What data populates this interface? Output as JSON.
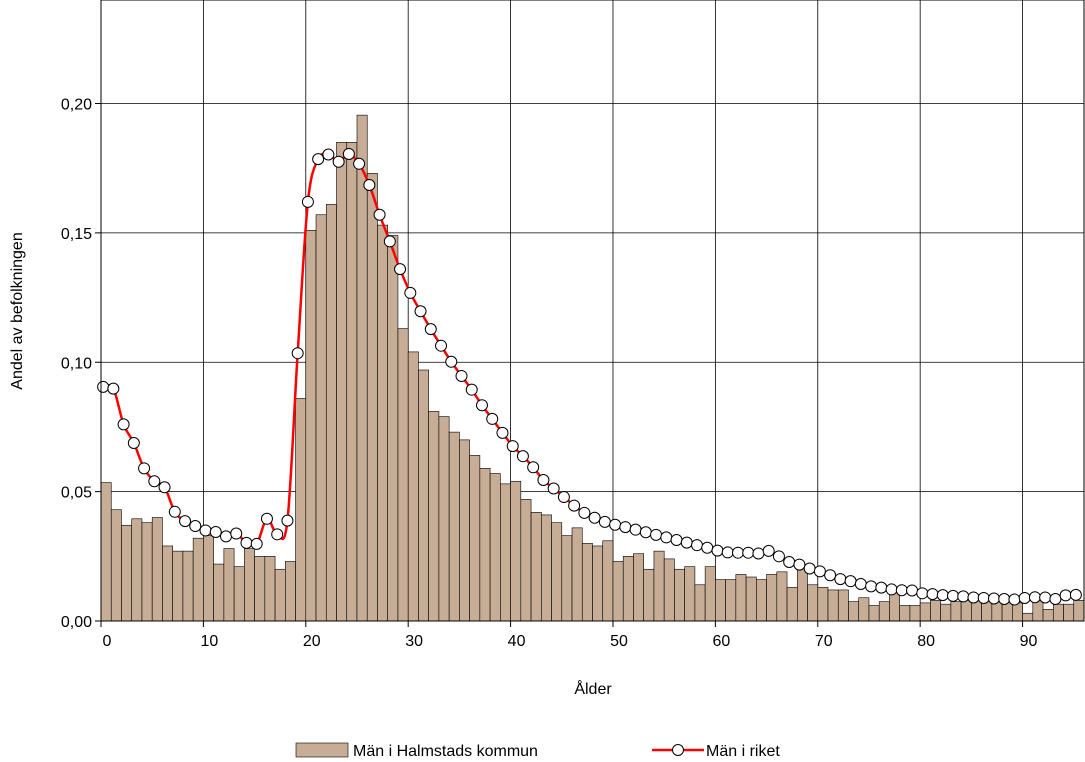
{
  "chart_data": {
    "type": "bar",
    "xlabel": "Ålder",
    "ylabel": "Andel av befolkningen",
    "xlim": [
      0,
      96
    ],
    "ylim": [
      0,
      0.24
    ],
    "x_ticks": [
      0,
      10,
      20,
      30,
      40,
      50,
      60,
      70,
      80,
      90
    ],
    "x_tick_labels": [
      "0",
      "10",
      "20",
      "30",
      "40",
      "50",
      "60",
      "70",
      "80",
      "90"
    ],
    "y_ticks": [
      0,
      0.05,
      0.1,
      0.15,
      0.2
    ],
    "y_tick_labels": [
      "0,00",
      "0,05",
      "0,10",
      "0,15",
      "0,20"
    ],
    "grid": true,
    "legend_position": "bottom",
    "ages": [
      0,
      1,
      2,
      3,
      4,
      5,
      6,
      7,
      8,
      9,
      10,
      11,
      12,
      13,
      14,
      15,
      16,
      17,
      18,
      19,
      20,
      21,
      22,
      23,
      24,
      25,
      26,
      27,
      28,
      29,
      30,
      31,
      32,
      33,
      34,
      35,
      36,
      37,
      38,
      39,
      40,
      41,
      42,
      43,
      44,
      45,
      46,
      47,
      48,
      49,
      50,
      51,
      52,
      53,
      54,
      55,
      56,
      57,
      58,
      59,
      60,
      61,
      62,
      63,
      64,
      65,
      66,
      67,
      68,
      69,
      70,
      71,
      72,
      73,
      74,
      75,
      76,
      77,
      78,
      79,
      80,
      81,
      82,
      83,
      84,
      85,
      86,
      87,
      88,
      89,
      90,
      91,
      92,
      93,
      94,
      95
    ],
    "series": [
      {
        "name": "Män i Halmstads kommun",
        "type": "bar",
        "color": "#c8ad96",
        "values": [
          0.0535,
          0.043,
          0.037,
          0.0395,
          0.038,
          0.04,
          0.029,
          0.027,
          0.027,
          0.032,
          0.033,
          0.022,
          0.028,
          0.021,
          0.028,
          0.025,
          0.025,
          0.02,
          0.023,
          0.086,
          0.151,
          0.157,
          0.161,
          0.185,
          0.185,
          0.1955,
          0.173,
          0.153,
          0.149,
          0.113,
          0.104,
          0.097,
          0.081,
          0.079,
          0.073,
          0.07,
          0.064,
          0.059,
          0.057,
          0.053,
          0.054,
          0.047,
          0.042,
          0.041,
          0.038,
          0.033,
          0.036,
          0.03,
          0.029,
          0.031,
          0.023,
          0.025,
          0.026,
          0.02,
          0.027,
          0.024,
          0.02,
          0.021,
          0.014,
          0.021,
          0.016,
          0.016,
          0.018,
          0.017,
          0.016,
          0.018,
          0.019,
          0.013,
          0.021,
          0.014,
          0.013,
          0.012,
          0.012,
          0.0075,
          0.009,
          0.006,
          0.0075,
          0.0115,
          0.006,
          0.006,
          0.007,
          0.008,
          0.0065,
          0.0075,
          0.008,
          0.008,
          0.008,
          0.009,
          0.008,
          0.007,
          0.003,
          0.008,
          0.0045,
          0.0065,
          0.0065,
          0.008
        ]
      },
      {
        "name": "Män i riket",
        "type": "line",
        "color": "#ff0000",
        "marker": "circle",
        "values": [
          0.0905,
          0.0898,
          0.076,
          0.0688,
          0.059,
          0.054,
          0.0517,
          0.0422,
          0.0386,
          0.0367,
          0.035,
          0.0344,
          0.0327,
          0.0338,
          0.0302,
          0.0298,
          0.0395,
          0.0335,
          0.0388,
          0.1035,
          0.162,
          0.1785,
          0.1803,
          0.1775,
          0.1805,
          0.1767,
          0.1685,
          0.157,
          0.1467,
          0.136,
          0.1268,
          0.1197,
          0.1128,
          0.1064,
          0.1002,
          0.0947,
          0.0894,
          0.0834,
          0.0781,
          0.0727,
          0.0676,
          0.0637,
          0.0594,
          0.0545,
          0.0512,
          0.0479,
          0.0446,
          0.0418,
          0.0399,
          0.0383,
          0.0372,
          0.0363,
          0.0353,
          0.0343,
          0.0333,
          0.0323,
          0.0313,
          0.0303,
          0.0293,
          0.0283,
          0.0272,
          0.0265,
          0.0264,
          0.0264,
          0.0261,
          0.0271,
          0.025,
          0.0228,
          0.0218,
          0.0203,
          0.0192,
          0.0177,
          0.0162,
          0.0154,
          0.0143,
          0.0134,
          0.0129,
          0.0122,
          0.0119,
          0.0118,
          0.0107,
          0.0104,
          0.01,
          0.0097,
          0.0095,
          0.0091,
          0.0089,
          0.0087,
          0.0085,
          0.0083,
          0.0089,
          0.0092,
          0.0091,
          0.0085,
          0.0099,
          0.0101
        ]
      }
    ]
  },
  "legend": {
    "bar_label": "Män i Halmstads kommun",
    "line_label": "Män i riket"
  }
}
